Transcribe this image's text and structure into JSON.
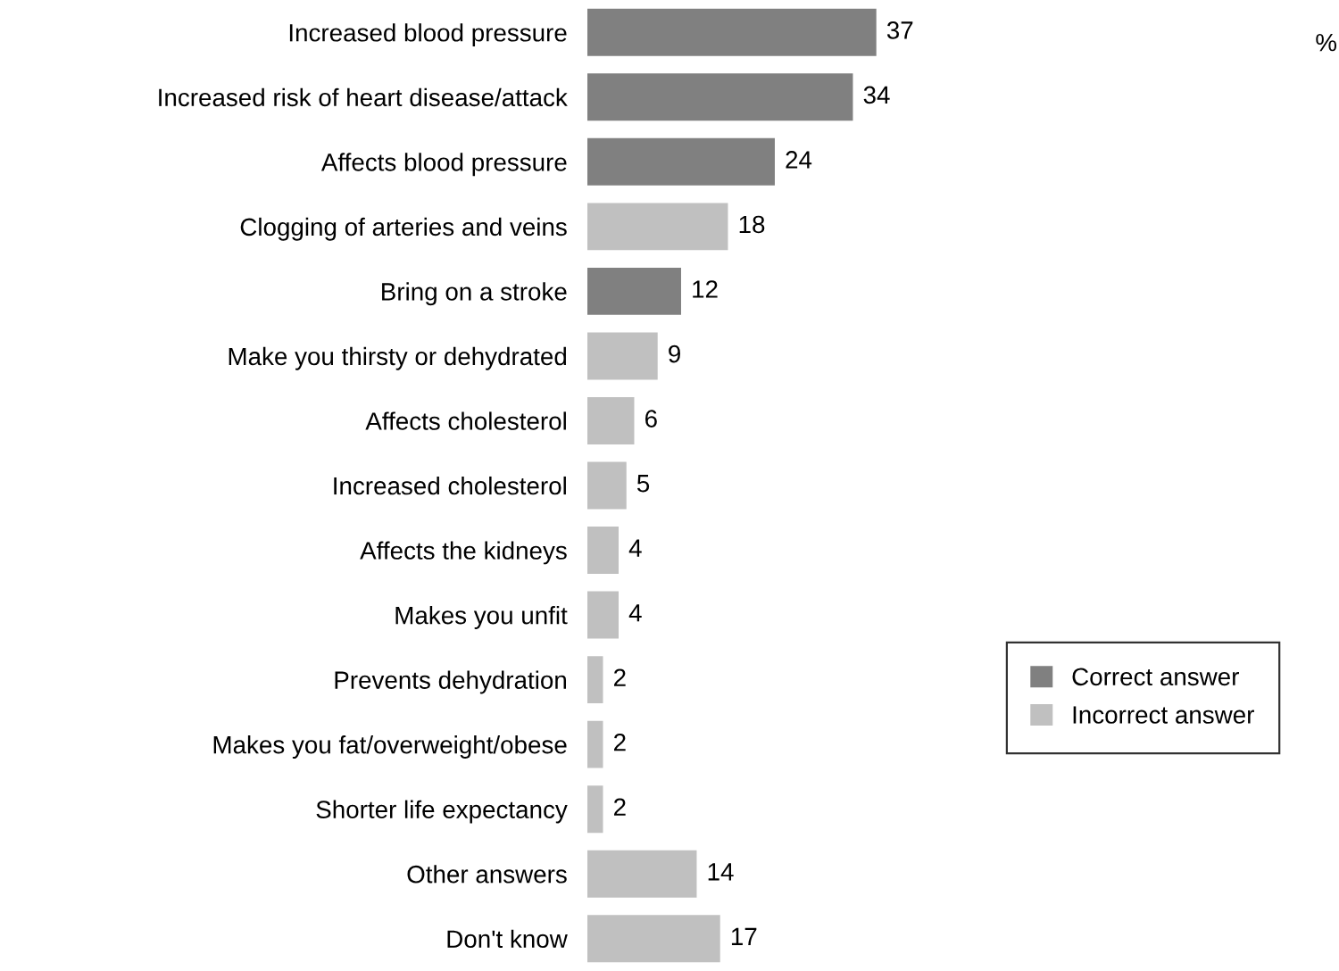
{
  "chart_data": {
    "type": "bar",
    "orientation": "horizontal",
    "data_labels": true,
    "legend": "right",
    "grid": false,
    "categories": [
      "Increased blood pressure",
      "Increased risk of heart disease/attack",
      "Affects blood pressure",
      "Clogging of arteries and veins",
      "Bring on a stroke",
      "Make you thirsty or dehydrated",
      "Affects cholesterol",
      "Increased cholesterol",
      "Affects the kidneys",
      "Makes you unfit",
      "Prevents dehydration",
      "Makes you fat/overweight/obese",
      "Shorter life expectancy",
      "Other answers",
      "Don't know"
    ],
    "series": [
      {
        "name": "Correct answer",
        "color": "#808080",
        "values": [
          37,
          34,
          24,
          null,
          12,
          null,
          null,
          null,
          null,
          null,
          null,
          null,
          null,
          null,
          null
        ]
      },
      {
        "name": "Incorrect answer",
        "color": "#c0c0c0",
        "values": [
          null,
          null,
          null,
          18,
          null,
          9,
          6,
          5,
          4,
          4,
          2,
          2,
          2,
          14,
          17
        ]
      }
    ],
    "annotations": [
      "%"
    ]
  }
}
